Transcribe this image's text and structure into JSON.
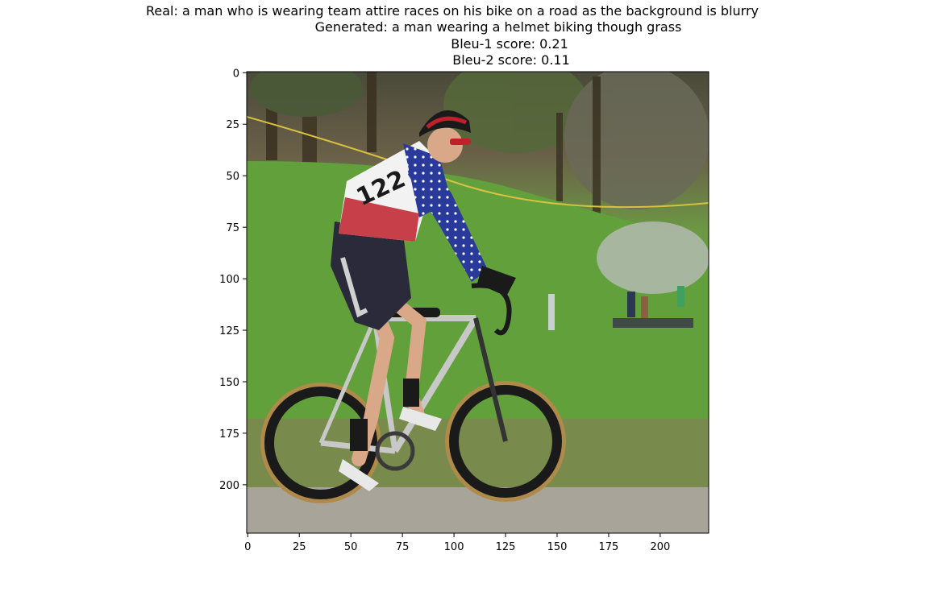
{
  "title": {
    "real": "Real: a man who is wearing team attire races on his bike on a road as the background is blurry",
    "generated": "Generated: a man wearing a helmet biking though grass",
    "bleu1": "Bleu-1 score: 0.21",
    "bleu2": "Bleu-2 score: 0.11"
  },
  "image": {
    "subject": "cyclist in stars-and-stripes jersey with race number 122 riding a road bike on grass",
    "bib_number": "122"
  },
  "axes": {
    "x_ticks": [
      0,
      25,
      50,
      75,
      100,
      125,
      150,
      175,
      200
    ],
    "y_ticks": [
      0,
      25,
      50,
      75,
      100,
      125,
      150,
      175,
      200
    ],
    "xlim": [
      -0.5,
      223.5
    ],
    "ylim": [
      223.5,
      -0.5
    ]
  },
  "colors": {
    "grass": "#5f9a3a",
    "jersey_blue": "#2a3a9a",
    "jersey_red": "#c0202a",
    "tire_tan": "#b08a4a"
  }
}
